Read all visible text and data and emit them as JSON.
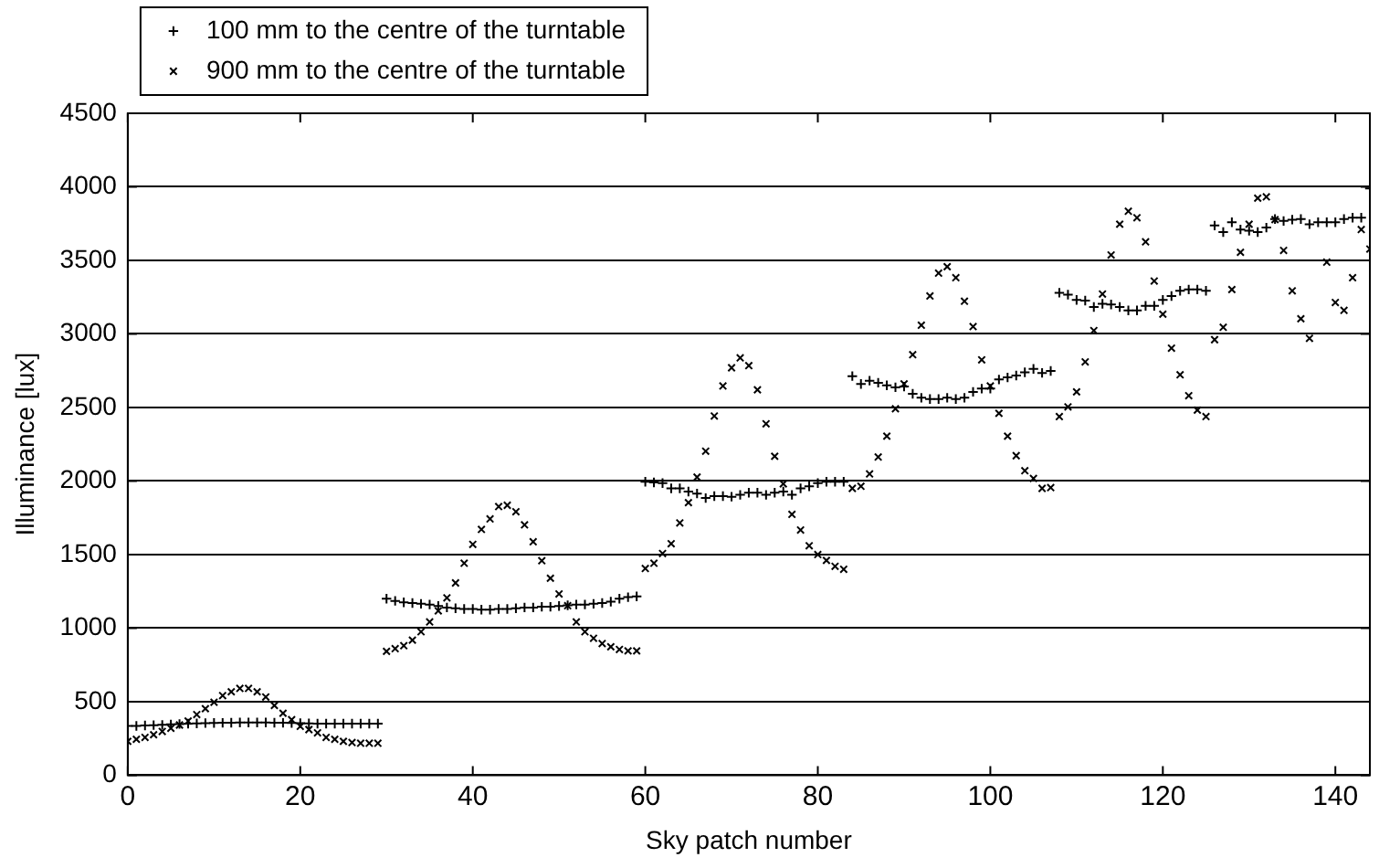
{
  "chart_data": {
    "type": "scatter",
    "xlabel": "Sky patch number",
    "ylabel": "Illuminance [lux]",
    "x": [
      0,
      1,
      2,
      3,
      4,
      5,
      6,
      7,
      8,
      9,
      10,
      11,
      12,
      13,
      14,
      15,
      16,
      17,
      18,
      19,
      20,
      21,
      22,
      23,
      24,
      25,
      26,
      27,
      28,
      29,
      30,
      31,
      32,
      33,
      34,
      35,
      36,
      37,
      38,
      39,
      40,
      41,
      42,
      43,
      44,
      45,
      46,
      47,
      48,
      49,
      50,
      51,
      52,
      53,
      54,
      55,
      56,
      57,
      58,
      59,
      60,
      61,
      62,
      63,
      64,
      65,
      66,
      67,
      68,
      69,
      70,
      71,
      72,
      73,
      74,
      75,
      76,
      77,
      78,
      79,
      80,
      81,
      82,
      83,
      84,
      85,
      86,
      87,
      88,
      89,
      90,
      91,
      92,
      93,
      94,
      95,
      96,
      97,
      98,
      99,
      100,
      101,
      102,
      103,
      104,
      105,
      106,
      107,
      108,
      109,
      110,
      111,
      112,
      113,
      114,
      115,
      116,
      117,
      118,
      119,
      120,
      121,
      122,
      123,
      124,
      125,
      126,
      127,
      128,
      129,
      130,
      131,
      132,
      133,
      134,
      135,
      136,
      137,
      138,
      139,
      140,
      141,
      142,
      143,
      144
    ],
    "series": [
      {
        "name": "100 mm to the centre of the turntable",
        "color": "#000000",
        "marker": "cross",
        "values": [
          335,
          335,
          338,
          340,
          342,
          345,
          348,
          350,
          352,
          354,
          355,
          356,
          357,
          358,
          358,
          358,
          358,
          357,
          356,
          355,
          354,
          352,
          350,
          350,
          350,
          350,
          350,
          350,
          350,
          350,
          1200,
          1185,
          1175,
          1170,
          1165,
          1160,
          1150,
          1140,
          1135,
          1130,
          1130,
          1125,
          1125,
          1130,
          1130,
          1135,
          1140,
          1140,
          1145,
          1145,
          1150,
          1155,
          1160,
          1160,
          1165,
          1170,
          1180,
          1200,
          1210,
          1215,
          1995,
          1990,
          1986,
          1950,
          1950,
          1928,
          1915,
          1884,
          1897,
          1897,
          1893,
          1906,
          1920,
          1920,
          1906,
          1920,
          1928,
          1906,
          1950,
          1964,
          1986,
          1995,
          1995,
          1995,
          2713,
          2660,
          2682,
          2668,
          2650,
          2637,
          2642,
          2593,
          2566,
          2557,
          2557,
          2566,
          2557,
          2566,
          2606,
          2628,
          2628,
          2690,
          2704,
          2717,
          2739,
          2762,
          2735,
          2748,
          3280,
          3267,
          3231,
          3227,
          3183,
          3205,
          3200,
          3183,
          3160,
          3160,
          3191,
          3191,
          3231,
          3258,
          3293,
          3302,
          3302,
          3293,
          3737,
          3692,
          3759,
          3710,
          3701,
          3692,
          3723,
          3781,
          3768,
          3777,
          3781,
          3746,
          3759,
          3759,
          3759,
          3781,
          3790,
          3790,
          3989
        ]
      },
      {
        "name": "900 mm to the centre of the turntable",
        "color": "#000000",
        "marker": "x",
        "values": [
          230,
          244,
          257,
          275,
          297,
          319,
          341,
          368,
          412,
          452,
          496,
          541,
          567,
          590,
          590,
          567,
          532,
          474,
          421,
          377,
          332,
          310,
          288,
          257,
          244,
          230,
          222,
          217,
          217,
          217,
          842,
          860,
          880,
          918,
          975,
          1042,
          1117,
          1206,
          1307,
          1441,
          1569,
          1671,
          1742,
          1826,
          1835,
          1791,
          1702,
          1587,
          1458,
          1339,
          1232,
          1152,
          1042,
          975,
          931,
          895,
          873,
          855,
          845,
          845,
          1405,
          1441,
          1507,
          1574,
          1715,
          1853,
          2026,
          2203,
          2442,
          2646,
          2770,
          2837,
          2784,
          2620,
          2389,
          2168,
          1981,
          1773,
          1667,
          1560,
          1500,
          1460,
          1420,
          1400,
          1950,
          1964,
          2048,
          2163,
          2305,
          2491,
          2660,
          2859,
          3059,
          3258,
          3413,
          3457,
          3382,
          3222,
          3050,
          2824,
          2646,
          2460,
          2305,
          2172,
          2070,
          2017,
          1950,
          1955,
          2438,
          2504,
          2606,
          2810,
          3023,
          3271,
          3537,
          3746,
          3834,
          3790,
          3626,
          3360,
          3134,
          2903,
          2722,
          2580,
          2482,
          2438,
          2961,
          3045,
          3302,
          3555,
          3746,
          3923,
          3932,
          3777,
          3568,
          3293,
          3103,
          2970,
          null,
          3488,
          3214,
          3160,
          3382,
          3710,
          3577
        ]
      }
    ],
    "xlim": [
      0,
      144
    ],
    "xticks": [
      0,
      20,
      40,
      60,
      80,
      100,
      120,
      140
    ],
    "ylim": [
      0,
      4500
    ],
    "yticks": [
      0,
      500,
      1000,
      1500,
      2000,
      2500,
      3000,
      3500,
      4000,
      4500
    ],
    "grid": "y",
    "legend": "top left"
  }
}
